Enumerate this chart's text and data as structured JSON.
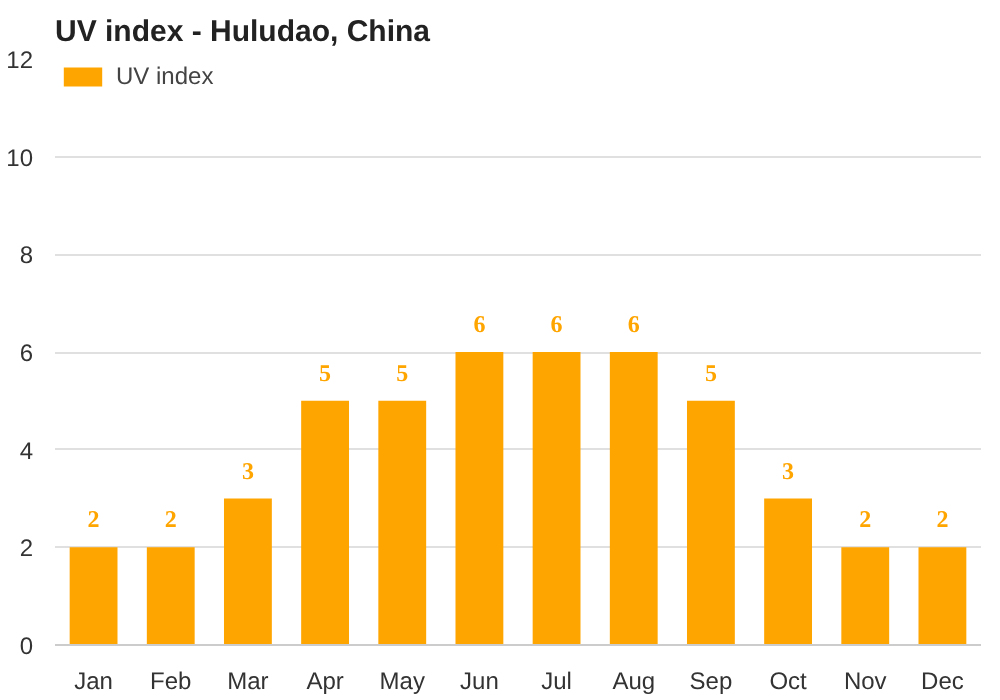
{
  "chart_data": {
    "type": "bar",
    "title": "UV index - Huludao, China",
    "categories": [
      "Jan",
      "Feb",
      "Mar",
      "Apr",
      "May",
      "Jun",
      "Jul",
      "Aug",
      "Sep",
      "Oct",
      "Nov",
      "Dec"
    ],
    "series": [
      {
        "name": "UV index",
        "color": "#ffa500",
        "values": [
          2,
          2,
          3,
          5,
          5,
          6,
          6,
          6,
          5,
          3,
          2,
          2
        ]
      }
    ],
    "ylim": [
      0,
      12
    ],
    "yticks": [
      0,
      2,
      4,
      6,
      8,
      10,
      12
    ],
    "grid": "y",
    "legend": "top left",
    "data_labels": true
  }
}
